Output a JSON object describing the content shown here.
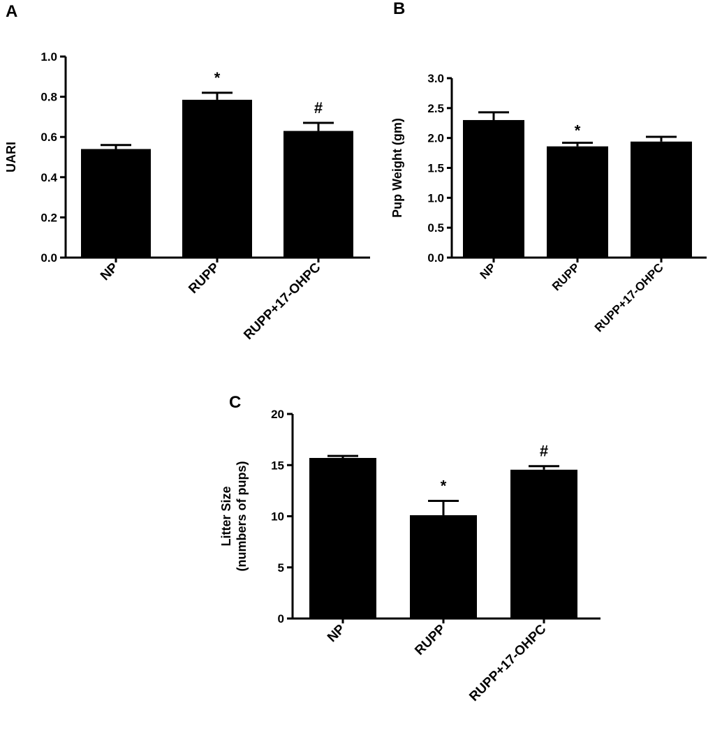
{
  "chart_data": [
    {
      "panel": "A",
      "type": "bar",
      "title": "",
      "xlabel": "",
      "ylabel": "UARI",
      "ylim": [
        0,
        1.0
      ],
      "yticks": [
        "0.0",
        "0.2",
        "0.4",
        "0.6",
        "0.8",
        "1.0"
      ],
      "categories": [
        "NP",
        "RUPP",
        "RUPP+17-OHPC"
      ],
      "values": [
        0.54,
        0.785,
        0.63
      ],
      "errors": [
        0.02,
        0.035,
        0.04
      ],
      "annotations": [
        "",
        "*",
        "#"
      ],
      "bar_color": "#000000",
      "grid": false
    },
    {
      "panel": "B",
      "type": "bar",
      "title": "",
      "xlabel": "",
      "ylabel": "Pup Weight (gm)",
      "ylim": [
        0,
        3.0
      ],
      "yticks": [
        "0.0",
        "0.5",
        "1.0",
        "1.5",
        "2.0",
        "2.5",
        "3.0"
      ],
      "categories": [
        "NP",
        "RUPP",
        "RUPP+17-OHPC"
      ],
      "values": [
        2.3,
        1.86,
        1.94
      ],
      "errors": [
        0.13,
        0.06,
        0.08
      ],
      "annotations": [
        "",
        "*",
        ""
      ],
      "bar_color": "#000000",
      "grid": false
    },
    {
      "panel": "C",
      "type": "bar",
      "title": "",
      "xlabel": "",
      "ylabel": [
        "Litter Size",
        "(numbers of pups)"
      ],
      "ylim": [
        0,
        20
      ],
      "yticks": [
        "0",
        "5",
        "10",
        "15",
        "20"
      ],
      "categories": [
        "NP",
        "RUPP",
        "RUPP+17-OHPC"
      ],
      "values": [
        15.7,
        10.1,
        14.55
      ],
      "errors": [
        0.2,
        1.4,
        0.35
      ],
      "annotations": [
        "",
        "*",
        "#"
      ],
      "bar_color": "#000000",
      "grid": false
    }
  ]
}
